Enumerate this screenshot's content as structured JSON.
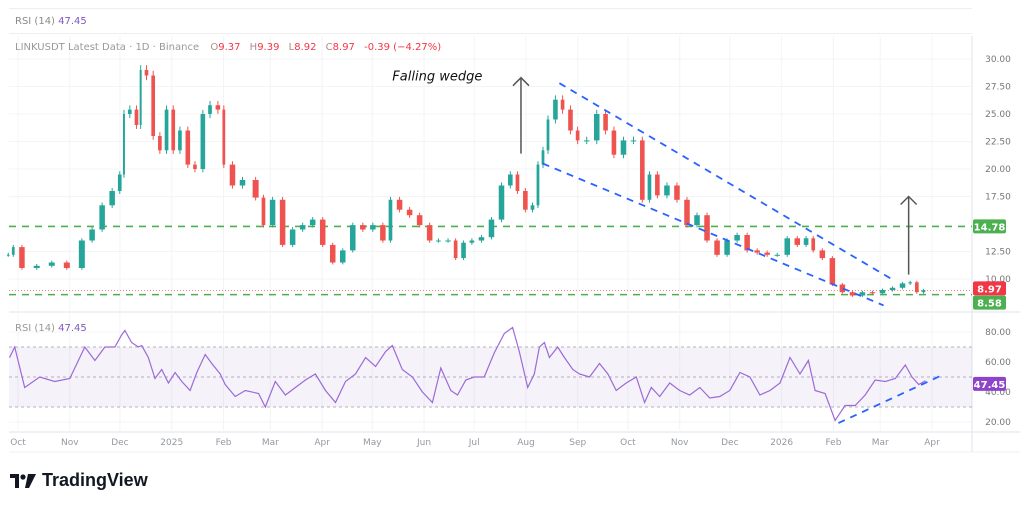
{
  "top_pane": {
    "indicator": "RSI (14)",
    "value": "47.45"
  },
  "legend": {
    "symbol": "LINKUSDT Latest Data · 1D · Binance",
    "open_label": "O",
    "open": "9.37",
    "high_label": "H",
    "high": "9.39",
    "low_label": "L",
    "low": "8.92",
    "close_label": "C",
    "close": "8.97",
    "change": "-0.39 (−4.27%)"
  },
  "rsi_legend": {
    "indicator": "RSI (14)",
    "value": "47.45"
  },
  "brand": {
    "name": "TradingView"
  },
  "colors": {
    "up": "#26a69a",
    "down": "#ef5350",
    "support": "#4caf50",
    "wedge": "#2962ff",
    "rsi": "#9c6ad6",
    "rsi_band": "#7e57c2",
    "price_label": "#f23645"
  },
  "chart_data": [
    {
      "type": "candlestick",
      "title": "",
      "ylim": [
        7.0,
        31.5
      ],
      "y_ticks": [
        "30.00",
        "27.50",
        "25.00",
        "22.50",
        "20.00",
        "17.50",
        "12.50",
        "10.00"
      ],
      "y_tick_values": [
        30,
        27.5,
        25,
        22.5,
        20,
        17.5,
        12.5,
        10
      ],
      "x_ticks": [
        {
          "label": "Oct",
          "date": "2024-10-01"
        },
        {
          "label": "Nov",
          "date": "2024-11-01"
        },
        {
          "label": "Dec",
          "date": "2024-12-01"
        },
        {
          "label": "2025",
          "date": "2025-01-01"
        },
        {
          "label": "Feb",
          "date": "2025-02-01"
        },
        {
          "label": "Mar",
          "date": "2025-03-01"
        },
        {
          "label": "Apr",
          "date": "2025-04-01"
        },
        {
          "label": "May",
          "date": "2025-05-01"
        },
        {
          "label": "Jun",
          "date": "2025-06-01"
        },
        {
          "label": "Jul",
          "date": "2025-07-01"
        },
        {
          "label": "Aug",
          "date": "2025-08-01"
        },
        {
          "label": "Sep",
          "date": "2025-09-01"
        },
        {
          "label": "Oct",
          "date": "2025-10-01"
        },
        {
          "label": "Nov",
          "date": "2025-11-01"
        },
        {
          "label": "Dec",
          "date": "2025-12-01"
        },
        {
          "label": "2026",
          "date": "2026-01-01"
        },
        {
          "label": "Feb",
          "date": "2026-02-01"
        },
        {
          "label": "Mar",
          "date": "2026-03-01"
        },
        {
          "label": "Apr",
          "date": "2026-04-01"
        }
      ],
      "grid": true,
      "dates": [
        "2024-09-26",
        "2024-09-29",
        "2024-10-05",
        "2024-10-14",
        "2024-10-23",
        "2024-11-01",
        "2024-11-10",
        "2024-11-16",
        "2024-11-22",
        "2024-11-28",
        "2024-12-02",
        "2024-12-04",
        "2024-12-08",
        "2024-12-12",
        "2024-12-14",
        "2024-12-18",
        "2024-12-22",
        "2024-12-26",
        "2024-12-30",
        "2025-01-03",
        "2025-01-07",
        "2025-01-12",
        "2025-01-16",
        "2025-01-21",
        "2025-01-25",
        "2025-01-30",
        "2025-02-02",
        "2025-02-08",
        "2025-02-14",
        "2025-02-22",
        "2025-02-26",
        "2025-03-04",
        "2025-03-10",
        "2025-03-16",
        "2025-03-22",
        "2025-03-28",
        "2025-04-03",
        "2025-04-09",
        "2025-04-15",
        "2025-04-21",
        "2025-04-27",
        "2025-05-03",
        "2025-05-09",
        "2025-05-13",
        "2025-05-19",
        "2025-05-25",
        "2025-05-31",
        "2025-06-06",
        "2025-06-11",
        "2025-06-17",
        "2025-06-21",
        "2025-06-26",
        "2025-07-01",
        "2025-07-07",
        "2025-07-13",
        "2025-07-19",
        "2025-07-24",
        "2025-07-28",
        "2025-08-02",
        "2025-08-06",
        "2025-08-09",
        "2025-08-12",
        "2025-08-15",
        "2025-08-20",
        "2025-08-24",
        "2025-08-29",
        "2025-09-02",
        "2025-09-08",
        "2025-09-14",
        "2025-09-19",
        "2025-09-24",
        "2025-09-30",
        "2025-10-06",
        "2025-10-11",
        "2025-10-15",
        "2025-10-20",
        "2025-10-26",
        "2025-11-01",
        "2025-11-07",
        "2025-11-13",
        "2025-11-19",
        "2025-11-25",
        "2025-12-01",
        "2025-12-07",
        "2025-12-13",
        "2025-12-19",
        "2025-12-25",
        "2025-12-31",
        "2026-01-06",
        "2026-01-12",
        "2026-01-17",
        "2026-01-21",
        "2026-01-27",
        "2026-02-02",
        "2026-02-08",
        "2026-02-14",
        "2026-02-20",
        "2026-02-26",
        "2026-03-04",
        "2026-03-10",
        "2026-03-16",
        "2026-03-20",
        "2026-03-24",
        "2026-03-28"
      ],
      "close": [
        12.2,
        12.9,
        11.0,
        11.2,
        11.5,
        11.0,
        13.5,
        14.5,
        16.7,
        18.0,
        19.5,
        25.0,
        25.4,
        24.0,
        29.0,
        28.5,
        23.0,
        21.7,
        25.4,
        21.7,
        23.5,
        20.4,
        20.0,
        25.0,
        25.8,
        25.4,
        20.4,
        18.5,
        19.0,
        17.4,
        14.9,
        17.2,
        13.1,
        14.5,
        14.9,
        15.4,
        13.1,
        11.5,
        12.6,
        14.9,
        14.5,
        14.9,
        13.5,
        17.2,
        16.3,
        15.8,
        14.9,
        13.5,
        13.5,
        13.5,
        11.9,
        13.3,
        13.5,
        13.8,
        15.4,
        18.5,
        19.5,
        18.0,
        16.3,
        16.7,
        20.4,
        21.7,
        24.5,
        26.3,
        25.4,
        23.5,
        22.6,
        22.6,
        25.0,
        23.5,
        21.3,
        22.6,
        22.6,
        17.2,
        19.5,
        17.6,
        18.5,
        17.2,
        14.9,
        15.8,
        13.5,
        12.2,
        13.5,
        14.0,
        12.6,
        12.4,
        12.2,
        12.2,
        13.7,
        13.1,
        13.7,
        12.6,
        11.9,
        9.5,
        8.8,
        8.5,
        8.8,
        8.7,
        9.0,
        9.2,
        9.6,
        9.7,
        8.8,
        8.97
      ],
      "last_price": 8.97,
      "horizontal_levels": [
        {
          "value": 14.78,
          "label": "14.78"
        },
        {
          "value": 8.58,
          "label": "8.58"
        }
      ],
      "last_price_label": "8.97",
      "wedge_lines": [
        {
          "from": {
            "date": "2025-08-21",
            "price": 27.8
          },
          "to": {
            "date": "2026-03-10",
            "price": 9.8
          }
        },
        {
          "from": {
            "date": "2025-08-11",
            "price": 20.5
          },
          "to": {
            "date": "2026-03-03",
            "price": 7.6
          }
        }
      ],
      "arrows": [
        {
          "date": "2025-07-29",
          "from": 21.4,
          "to": 28.3
        },
        {
          "date": "2026-03-18",
          "from": 10.4,
          "to": 17.5
        }
      ],
      "annotation": {
        "text": "Falling wedge",
        "date": "2025-05-13",
        "price": 28.3
      }
    },
    {
      "type": "line",
      "title": "",
      "name": "RSI (14)",
      "ylim": [
        15,
        85
      ],
      "y_ticks": [
        "80.00",
        "60.00",
        "40.00",
        "20.00"
      ],
      "y_tick_values": [
        80,
        60,
        40,
        20
      ],
      "bands": {
        "upper": 70,
        "middle": 50,
        "lower": 30
      },
      "last_value": 47.45,
      "last_value_label": "47.45",
      "values": [
        63,
        70,
        43,
        50,
        47,
        49,
        70,
        61,
        70,
        70,
        78,
        81,
        73,
        70,
        71,
        63,
        49,
        55,
        46,
        53,
        47,
        41,
        53,
        65,
        59,
        52,
        45,
        37,
        41,
        39,
        30,
        47,
        38,
        43,
        48,
        52,
        41,
        33,
        47,
        52,
        63,
        57,
        67,
        71,
        55,
        50,
        40,
        33,
        56,
        41,
        38,
        48,
        50,
        50,
        66,
        79,
        83,
        67,
        43,
        52,
        70,
        73,
        63,
        70,
        63,
        55,
        52,
        50,
        59,
        52,
        41,
        46,
        50,
        33,
        43,
        37,
        46,
        41,
        38,
        43,
        36,
        37,
        41,
        53,
        50,
        38,
        41,
        46,
        63,
        52,
        61,
        41,
        39,
        21,
        31,
        31,
        38,
        48,
        47,
        49,
        58,
        50,
        45,
        47.45
      ],
      "trendline": {
        "from": {
          "date": "2026-02-04",
          "value": 19.3
        },
        "to": {
          "date": "2026-04-06",
          "value": 50.7
        }
      }
    }
  ]
}
